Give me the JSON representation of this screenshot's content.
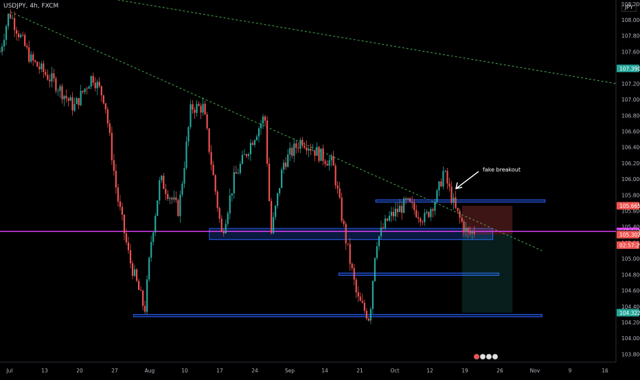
{
  "header": {
    "symbol": "USDJPY, 4h, FXCM",
    "currency": "JPY"
  },
  "chart_data": {
    "type": "candlestick",
    "x_tick_labels": [
      "Jul",
      "13",
      "20",
      "27",
      "Aug",
      "10",
      "17",
      "24",
      "Sep",
      "14",
      "21",
      "Oct",
      "12",
      "19",
      "26",
      "Nov",
      "9",
      "16"
    ],
    "y_tick_labels": [
      "108.200",
      "108.000",
      "107.800",
      "107.600",
      "107.400",
      "107.200",
      "107.000",
      "106.800",
      "106.600",
      "106.400",
      "106.200",
      "106.000",
      "105.800",
      "105.600",
      "105.400",
      "105.200",
      "105.000",
      "104.800",
      "104.600",
      "104.400",
      "104.200",
      "104.000",
      "103.800"
    ],
    "ylim": [
      103.7,
      108.25
    ],
    "price_labels": [
      {
        "text": "107.390",
        "value": 107.39,
        "color": "#26a69a"
      },
      {
        "text": "105.665",
        "value": 105.665,
        "color": "#ef5350"
      },
      {
        "text": "105.343",
        "value": 105.343,
        "color": "#e040fb"
      },
      {
        "text": "105.315",
        "value": 105.315,
        "color": "#2a2e39"
      },
      {
        "text": "105.302",
        "value": 105.302,
        "color": "#ef5350"
      },
      {
        "text": "02:57:29",
        "value": 105.17,
        "color": "#ef5350"
      },
      {
        "text": "104.322",
        "value": 104.322,
        "color": "#26a69a"
      }
    ],
    "annotations": [
      {
        "text": "fake breakout"
      }
    ],
    "trendlines": [
      {
        "name": "upper-trendline",
        "start": [
          0.0,
          108.5
        ],
        "end": [
          1.0,
          107.2
        ]
      },
      {
        "name": "mid-trendline",
        "start": [
          0.017,
          108.1
        ],
        "end": [
          0.88,
          105.1
        ]
      }
    ],
    "horizontal_lines": [
      {
        "name": "current-price-line",
        "value": 105.343,
        "color": "#e040fb"
      }
    ],
    "zones": [
      {
        "name": "zone-105-7",
        "from": 0.61,
        "to": 0.885,
        "low": 105.71,
        "high": 105.74
      },
      {
        "name": "zone-105-3",
        "from": 0.34,
        "to": 0.8,
        "low": 105.24,
        "high": 105.38
      },
      {
        "name": "zone-104-8",
        "from": 0.55,
        "to": 0.81,
        "low": 104.79,
        "high": 104.82
      },
      {
        "name": "zone-104-3",
        "from": 0.217,
        "to": 0.88,
        "low": 104.27,
        "high": 104.3
      }
    ],
    "position": {
      "entry": 105.302,
      "stop": 105.665,
      "target": 104.322,
      "from": 0.75,
      "to": 0.832
    }
  }
}
